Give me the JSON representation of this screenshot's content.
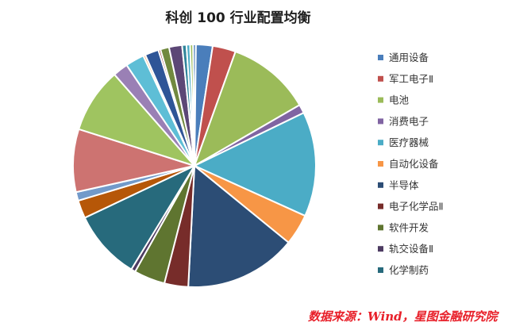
{
  "chart_data": {
    "type": "pie",
    "title": "科创 100 行业配置均衡",
    "legend_position": "right",
    "slices": [
      {
        "name": "",
        "value": 0.4,
        "color": "#4a7ebb"
      },
      {
        "name": "通用设备",
        "value": 2.3,
        "color": "#4a7ebb"
      },
      {
        "name": "军工电子Ⅱ",
        "value": 3.2,
        "color": "#c0504d"
      },
      {
        "name": "电池",
        "value": 11.6,
        "color": "#9bbb59"
      },
      {
        "name": "消费电子",
        "value": 1.2,
        "color": "#8064a2"
      },
      {
        "name": "医疗器械",
        "value": 14.5,
        "color": "#4bacc6"
      },
      {
        "name": "自动化设备",
        "value": 4.3,
        "color": "#f79646"
      },
      {
        "name": "半导体",
        "value": 15.5,
        "color": "#2c4d75"
      },
      {
        "name": "电子化学品Ⅱ",
        "value": 3.3,
        "color": "#772c2a"
      },
      {
        "name": "软件开发",
        "value": 4.3,
        "color": "#5f7530"
      },
      {
        "name": "轨交设备Ⅱ",
        "value": 0.6,
        "color": "#4d3b62"
      },
      {
        "name": "化学制药",
        "value": 9.6,
        "color": "#276a7c"
      },
      {
        "name": "",
        "value": 2.5,
        "color": "#b65708"
      },
      {
        "name": "",
        "value": 1.2,
        "color": "#729aca"
      },
      {
        "name": "",
        "value": 8.7,
        "color": "#cd7371"
      },
      {
        "name": "",
        "value": 9.0,
        "color": "#9fc460"
      },
      {
        "name": "",
        "value": 2.1,
        "color": "#9a80b5"
      },
      {
        "name": "",
        "value": 2.6,
        "color": "#5ebed6"
      },
      {
        "name": "",
        "value": 0.3,
        "color": "#f9ab6b"
      },
      {
        "name": "",
        "value": 1.9,
        "color": "#2f5597"
      },
      {
        "name": "",
        "value": 0.3,
        "color": "#9b3a38"
      },
      {
        "name": "",
        "value": 1.2,
        "color": "#71893f"
      },
      {
        "name": "",
        "value": 1.8,
        "color": "#5c4776"
      },
      {
        "name": "",
        "value": 0.6,
        "color": "#31859b"
      },
      {
        "name": "",
        "value": 0.5,
        "color": "#4bacc6"
      },
      {
        "name": "",
        "value": 0.4,
        "color": "#9bbb59"
      }
    ]
  },
  "source_text": "数据来源：Wind，星图金融研究院"
}
